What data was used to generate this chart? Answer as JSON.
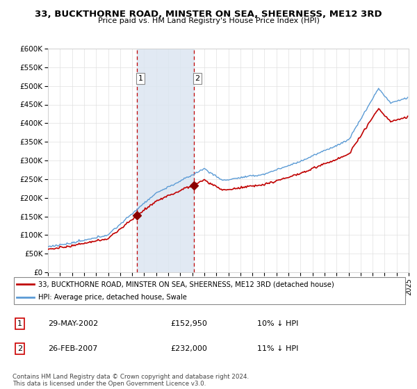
{
  "title": "33, BUCKTHORNE ROAD, MINSTER ON SEA, SHEERNESS, ME12 3RD",
  "subtitle": "Price paid vs. HM Land Registry's House Price Index (HPI)",
  "yticks": [
    0,
    50000,
    100000,
    150000,
    200000,
    250000,
    300000,
    350000,
    400000,
    450000,
    500000,
    550000,
    600000
  ],
  "ytick_labels": [
    "£0",
    "£50K",
    "£100K",
    "£150K",
    "£200K",
    "£250K",
    "£300K",
    "£350K",
    "£400K",
    "£450K",
    "£500K",
    "£550K",
    "£600K"
  ],
  "hpi_color": "#5b9bd5",
  "price_color": "#c00000",
  "marker_color": "#8b0000",
  "shading_color": "#dce6f1",
  "vline_color": "#c00000",
  "transaction1_x": 2002.38,
  "transaction1_y": 152950,
  "transaction2_x": 2007.12,
  "transaction2_y": 232000,
  "legend_entry1": "33, BUCKTHORNE ROAD, MINSTER ON SEA, SHEERNESS, ME12 3RD (detached house)",
  "legend_entry2": "HPI: Average price, detached house, Swale",
  "table_row1": [
    "1",
    "29-MAY-2002",
    "£152,950",
    "10% ↓ HPI"
  ],
  "table_row2": [
    "2",
    "26-FEB-2007",
    "£232,000",
    "11% ↓ HPI"
  ],
  "footnote": "Contains HM Land Registry data © Crown copyright and database right 2024.\nThis data is licensed under the Open Government Licence v3.0.",
  "xmin": 1995,
  "xmax": 2025,
  "ymin": 0,
  "ymax": 600000
}
